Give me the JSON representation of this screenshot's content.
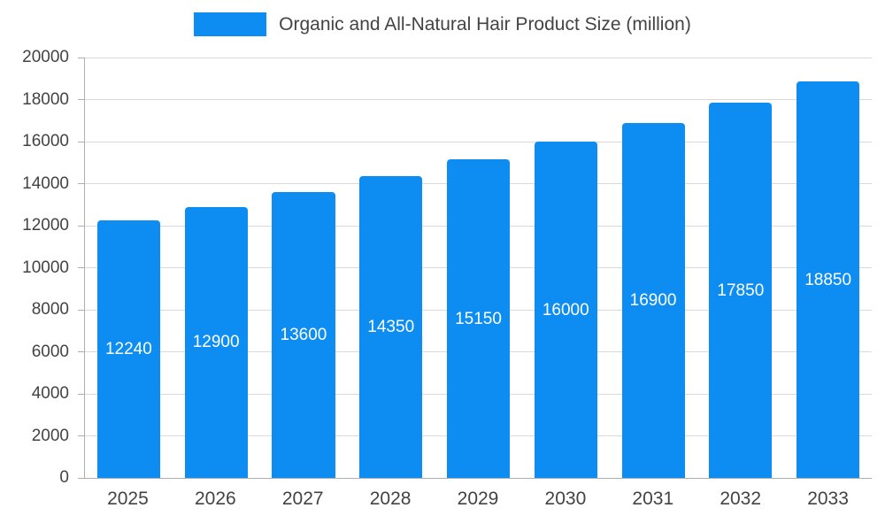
{
  "chart_data": {
    "type": "bar",
    "title": "Organic and All-Natural Hair Product Size (million)",
    "categories": [
      "2025",
      "2026",
      "2027",
      "2028",
      "2029",
      "2030",
      "2031",
      "2032",
      "2033"
    ],
    "values": [
      12240,
      12900,
      13600,
      14350,
      15150,
      16000,
      16900,
      17850,
      18850
    ],
    "xlabel": "",
    "ylabel": "",
    "ylim": [
      0,
      20000
    ],
    "yticks": [
      0,
      2000,
      4000,
      6000,
      8000,
      10000,
      12000,
      14000,
      16000,
      18000,
      20000
    ],
    "grid": true,
    "legend_position": "top",
    "bar_color": "#0D8DF2",
    "bar_label_color": "#FFFFFF",
    "axis_text_color": "#434343",
    "gridline_color": "#d9d9d9",
    "axis_line_color": "#aeaeae"
  }
}
